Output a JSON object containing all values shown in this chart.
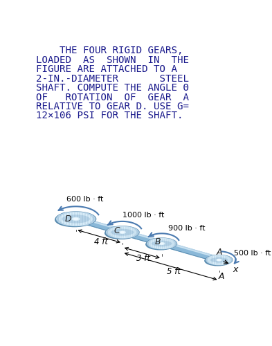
{
  "text_lines": [
    "    THE FOUR RIGID GEARS,",
    "LOADED  AS  SHOWN  IN  THE",
    "FIGURE ARE ATTACHED TO A",
    "2-IN.-DIAMETER       STEEL",
    "SHAFT. COMPUTE THE ANGLE Θ",
    "OF   ROTATION  OF  GEAR  A",
    "RELATIVE TO GEAR D. USE G=",
    "12×106 PSI FOR THE SHAFT."
  ],
  "text_color": "#1a1a8c",
  "bg_color": "#ffffff",
  "cl": "#b8d4e8",
  "cm": "#8ab8d8",
  "cd": "#5a8cb0",
  "cll": "#d8ecf8",
  "torques": [
    "600 lb · ft",
    "1000 lb · ft",
    "900 lb · ft",
    "500 lb · ft"
  ],
  "labels": [
    "D",
    "C",
    "B",
    "A"
  ],
  "dims": [
    "4 ft",
    "3 ft",
    "5 ft"
  ],
  "fs_text": 10.2,
  "fs_torque": 8.0,
  "fs_label": 9,
  "fs_dim": 8.5
}
